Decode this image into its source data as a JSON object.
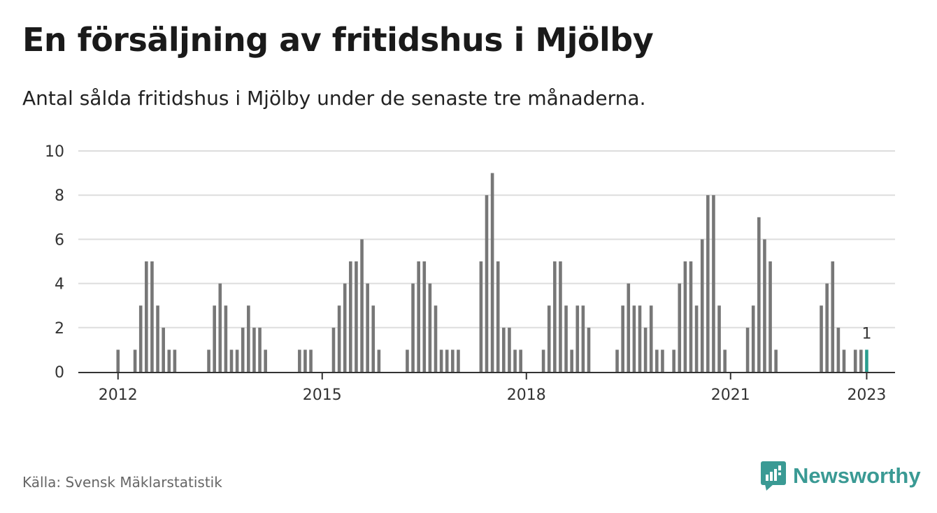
{
  "title": "En försäljning av fritidshus i Mjölby",
  "subtitle": "Antal sålda fritidshus i Mjölby under de senaste tre månaderna.",
  "source": "Källa: Svensk Mäklarstatistik",
  "brand": "Newsworthy",
  "colors": {
    "bar": "#777777",
    "highlight": "#2a9d8f",
    "grid": "#dddddd",
    "axis": "#333333",
    "brand": "#3a9a94"
  },
  "chart_data": {
    "type": "bar",
    "x_axis": "date",
    "xticks": [
      "2012",
      "2015",
      "2018",
      "2021",
      "2023"
    ],
    "yticks": [
      0,
      2,
      4,
      6,
      8,
      10
    ],
    "ylim": [
      0,
      10
    ],
    "xlim": [
      "2011-06",
      "2023-06"
    ],
    "grid": true,
    "series": [
      {
        "values": [
          [
            "2012-01",
            1
          ],
          [
            "2012-04",
            1
          ],
          [
            "2012-05",
            3
          ],
          [
            "2012-06",
            5
          ],
          [
            "2012-07",
            5
          ],
          [
            "2012-08",
            3
          ],
          [
            "2012-09",
            2
          ],
          [
            "2012-10",
            1
          ],
          [
            "2012-11",
            1
          ],
          [
            "2013-05",
            1
          ],
          [
            "2013-06",
            3
          ],
          [
            "2013-07",
            4
          ],
          [
            "2013-08",
            3
          ],
          [
            "2013-09",
            1
          ],
          [
            "2013-10",
            1
          ],
          [
            "2013-11",
            2
          ],
          [
            "2013-12",
            3
          ],
          [
            "2014-01",
            2
          ],
          [
            "2014-02",
            2
          ],
          [
            "2014-03",
            1
          ],
          [
            "2014-09",
            1
          ],
          [
            "2014-10",
            1
          ],
          [
            "2014-11",
            1
          ],
          [
            "2015-03",
            2
          ],
          [
            "2015-04",
            3
          ],
          [
            "2015-05",
            4
          ],
          [
            "2015-06",
            5
          ],
          [
            "2015-07",
            5
          ],
          [
            "2015-08",
            6
          ],
          [
            "2015-09",
            4
          ],
          [
            "2015-10",
            3
          ],
          [
            "2015-11",
            1
          ],
          [
            "2016-04",
            1
          ],
          [
            "2016-05",
            4
          ],
          [
            "2016-06",
            5
          ],
          [
            "2016-07",
            5
          ],
          [
            "2016-08",
            4
          ],
          [
            "2016-09",
            3
          ],
          [
            "2016-10",
            1
          ],
          [
            "2016-11",
            1
          ],
          [
            "2016-12",
            1
          ],
          [
            "2017-01",
            1
          ],
          [
            "2017-05",
            5
          ],
          [
            "2017-06",
            8
          ],
          [
            "2017-07",
            9
          ],
          [
            "2017-08",
            5
          ],
          [
            "2017-09",
            2
          ],
          [
            "2017-10",
            2
          ],
          [
            "2017-11",
            1
          ],
          [
            "2017-12",
            1
          ],
          [
            "2018-04",
            1
          ],
          [
            "2018-05",
            3
          ],
          [
            "2018-06",
            5
          ],
          [
            "2018-07",
            5
          ],
          [
            "2018-08",
            3
          ],
          [
            "2018-09",
            1
          ],
          [
            "2018-10",
            3
          ],
          [
            "2018-11",
            3
          ],
          [
            "2018-12",
            2
          ],
          [
            "2019-05",
            1
          ],
          [
            "2019-06",
            3
          ],
          [
            "2019-07",
            4
          ],
          [
            "2019-08",
            3
          ],
          [
            "2019-09",
            3
          ],
          [
            "2019-10",
            2
          ],
          [
            "2019-11",
            3
          ],
          [
            "2019-12",
            1
          ],
          [
            "2020-01",
            1
          ],
          [
            "2020-03",
            1
          ],
          [
            "2020-04",
            4
          ],
          [
            "2020-05",
            5
          ],
          [
            "2020-06",
            5
          ],
          [
            "2020-07",
            3
          ],
          [
            "2020-08",
            6
          ],
          [
            "2020-09",
            8
          ],
          [
            "2020-10",
            8
          ],
          [
            "2020-11",
            3
          ],
          [
            "2020-12",
            1
          ],
          [
            "2021-04",
            2
          ],
          [
            "2021-05",
            3
          ],
          [
            "2021-06",
            7
          ],
          [
            "2021-07",
            6
          ],
          [
            "2021-08",
            5
          ],
          [
            "2021-09",
            1
          ],
          [
            "2022-05",
            3
          ],
          [
            "2022-06",
            4
          ],
          [
            "2022-07",
            5
          ],
          [
            "2022-08",
            2
          ],
          [
            "2022-09",
            1
          ],
          [
            "2022-11",
            1
          ],
          [
            "2022-12",
            1
          ],
          [
            "2023-01",
            1
          ]
        ]
      }
    ],
    "highlight": {
      "date": "2023-01",
      "value": 1,
      "label": "1"
    }
  }
}
